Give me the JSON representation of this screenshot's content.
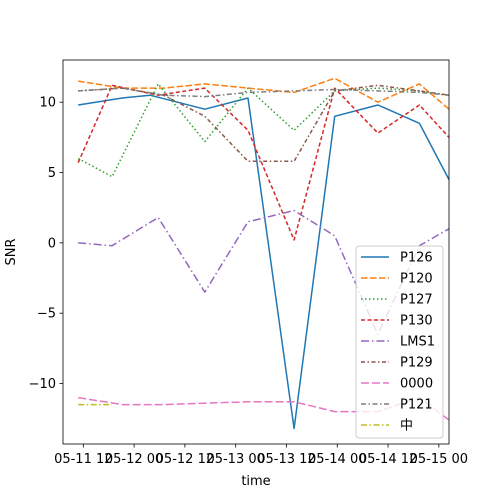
{
  "chart_data": {
    "type": "line",
    "xlabel": "time",
    "ylabel": "SNR",
    "x_tick_labels": [
      "05-11 12",
      "05-12 00",
      "05-12 12",
      "05-13 00",
      "05-13 12",
      "05-14 00",
      "05-14 12",
      "05-15 00"
    ],
    "x_tick_hours": [
      12,
      24,
      36,
      48,
      60,
      72,
      84,
      96
    ],
    "x_range_hours": [
      7.2,
      98.4
    ],
    "y_ticks": [
      10,
      5,
      0,
      -5,
      -10
    ],
    "y_tick_labels": [
      "10",
      "5",
      "0",
      "−5",
      "−10"
    ],
    "ylim": [
      -14.3,
      13.0
    ],
    "grid": false,
    "legend_position": "lower-right",
    "series": [
      {
        "name": "P126",
        "color": "#1f77b4",
        "dash": "",
        "x": [
          10.8,
          21.2,
          27.8,
          40.7,
          50.9,
          61.8,
          71.4,
          81.6,
          91.4,
          98.4
        ],
        "y": [
          9.8,
          10.3,
          10.5,
          9.5,
          10.3,
          -13.2,
          9.0,
          9.8,
          8.5,
          4.5
        ]
      },
      {
        "name": "P120",
        "color": "#ff7f0e",
        "dash": "6.5,2.5",
        "x": [
          10.8,
          21.2,
          31.0,
          40.7,
          50.9,
          61.8,
          71.4,
          81.6,
          91.4,
          98.4
        ],
        "y": [
          11.5,
          11.0,
          11.0,
          11.3,
          11.0,
          10.7,
          11.7,
          10.0,
          11.3,
          9.5
        ]
      },
      {
        "name": "P127",
        "color": "#2ca02c",
        "dash": "1.5,2.5",
        "x": [
          10.8,
          18.8,
          29.7,
          40.7,
          50.9,
          61.8,
          71.4,
          81.6,
          91.4,
          98.4
        ],
        "y": [
          6.0,
          4.7,
          11.3,
          7.2,
          11.0,
          8.0,
          10.8,
          11.0,
          10.8,
          10.5
        ]
      },
      {
        "name": "P130",
        "color": "#d62728",
        "dash": "4,2.5",
        "x": [
          10.8,
          18.8,
          29.7,
          40.7,
          50.9,
          61.8,
          71.4,
          81.6,
          91.4,
          98.4
        ],
        "y": [
          5.7,
          11.2,
          10.5,
          11.0,
          8.0,
          0.2,
          11.0,
          7.8,
          9.8,
          7.5
        ]
      },
      {
        "name": "LMS1",
        "color": "#9467bd",
        "dash": "8,3,1.5,3",
        "x": [
          10.8,
          18.8,
          29.7,
          40.7,
          50.9,
          61.8,
          71.4,
          81.6,
          91.4,
          98.4
        ],
        "y": [
          0.0,
          -0.2,
          1.8,
          -3.5,
          1.5,
          2.3,
          0.5,
          -6.5,
          -0.2,
          1.0
        ]
      },
      {
        "name": "P129",
        "color": "#8c564b",
        "dash": "4,2.5,1.5,2.5",
        "x": [
          10.8,
          21.2,
          31.0,
          40.7,
          50.9,
          61.8,
          71.4,
          81.6,
          91.4,
          98.4
        ],
        "y": [
          10.8,
          11.0,
          10.5,
          9.0,
          5.8,
          5.8,
          10.8,
          11.2,
          10.8,
          10.5
        ]
      },
      {
        "name": "0000",
        "color": "#e377c2",
        "dash": "8,3",
        "x": [
          10.8,
          21.2,
          31.0,
          40.7,
          50.9,
          61.8,
          71.4,
          81.6,
          91.4,
          98.4
        ],
        "y": [
          -11.0,
          -11.5,
          -11.5,
          -11.4,
          -11.3,
          -11.3,
          -12.0,
          -12.0,
          -11.0,
          -12.6
        ]
      },
      {
        "name": "P121",
        "color": "#7f7f7f",
        "dash": "5,2.5,1.5,2.5",
        "x": [
          10.8,
          21.2,
          31.0,
          40.7,
          50.9,
          61.8,
          71.4,
          81.6,
          91.4,
          98.4
        ],
        "y": [
          10.8,
          11.0,
          10.5,
          10.4,
          10.7,
          10.8,
          10.9,
          10.8,
          10.7,
          10.5
        ]
      },
      {
        "name": "中",
        "color": "#bcbd22",
        "dash": "6,2.5,1.5,2.5",
        "x": [
          10.8,
          18.8
        ],
        "y": [
          -11.5,
          -11.5
        ]
      }
    ]
  }
}
